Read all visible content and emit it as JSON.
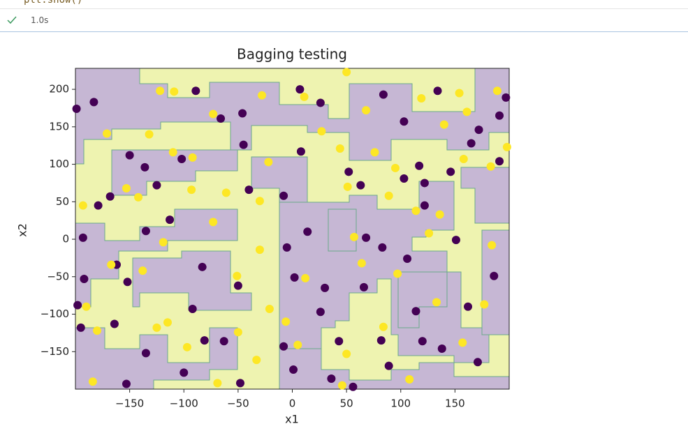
{
  "cell": {
    "code": "plt.show()",
    "status_time": "1.0s"
  },
  "chart_data": {
    "type": "scatter",
    "title": "Bagging testing",
    "x_label": "x1",
    "y_label": "x2",
    "xlim": [
      -200,
      200
    ],
    "ylim": [
      -200,
      228
    ],
    "xticks": [
      {
        "value": -150,
        "label": "−150"
      },
      {
        "value": -100,
        "label": "−100"
      },
      {
        "value": -50,
        "label": "−50"
      },
      0,
      50,
      100,
      150
    ],
    "yticks": [
      {
        "value": -150,
        "label": "−150"
      },
      {
        "value": -100,
        "label": "−100"
      },
      {
        "value": -50,
        "label": "−50"
      },
      0,
      50,
      100,
      150,
      200
    ],
    "series": [
      {
        "color": "#440154",
        "x": [
          -89,
          -183,
          -199,
          -66,
          -46,
          26,
          7,
          84,
          103,
          134,
          172,
          191,
          197,
          -45,
          -150,
          -102,
          8,
          52,
          117,
          146,
          191,
          165,
          -136,
          -125,
          -40,
          -8,
          63,
          103,
          122,
          122,
          -168,
          -179,
          -113,
          -135,
          -193,
          14,
          68,
          83,
          151,
          -5,
          -162,
          -152,
          -192,
          -83,
          -50,
          2,
          30,
          66,
          106,
          186,
          -198,
          -92,
          26,
          114,
          162,
          -195,
          -164,
          -8,
          43,
          82,
          120,
          138,
          -81,
          -63,
          -135,
          -100,
          1,
          36,
          89,
          171,
          -48,
          -153,
          56
        ],
        "values": [
          198,
          183,
          174,
          161,
          168,
          182,
          200,
          193,
          157,
          198,
          146,
          165,
          189,
          126,
          112,
          107,
          117,
          90,
          98,
          90,
          104,
          128,
          96,
          72,
          66,
          58,
          72,
          81,
          75,
          45,
          57,
          45,
          26,
          11,
          2,
          10,
          2,
          -11,
          -1,
          -11,
          -34,
          -57,
          -53,
          -37,
          -62,
          -51,
          -65,
          -64,
          -26,
          -49,
          -88,
          -93,
          -97,
          -96,
          -90,
          -118,
          -113,
          -143,
          -136,
          -135,
          -136,
          -146,
          -135,
          -136,
          -152,
          -178,
          -174,
          -186,
          -169,
          -164,
          -192,
          -193,
          -197
        ]
      },
      {
        "color": "#fde725",
        "x": [
          -109,
          -122,
          -28,
          11,
          68,
          119,
          154,
          189,
          -171,
          -132,
          -73,
          27,
          140,
          161,
          198,
          -110,
          -92,
          -22,
          44,
          76,
          95,
          158,
          183,
          -153,
          -142,
          -93,
          -61,
          -30,
          51,
          89,
          114,
          136,
          -193,
          -73,
          -119,
          -30,
          57,
          126,
          184,
          -167,
          -138,
          -51,
          12,
          64,
          97,
          133,
          -190,
          -115,
          -21,
          -6,
          84,
          177,
          -180,
          -125,
          -97,
          -50,
          5,
          50,
          157,
          -184,
          -69,
          -33,
          46,
          108,
          50
        ],
        "values": [
          197,
          198,
          192,
          190,
          172,
          188,
          195,
          198,
          141,
          140,
          167,
          144,
          153,
          170,
          123,
          116,
          109,
          103,
          121,
          116,
          95,
          107,
          97,
          68,
          56,
          66,
          62,
          51,
          70,
          58,
          38,
          33,
          45,
          23,
          -4,
          -14,
          3,
          8,
          -8,
          -34,
          -42,
          -49,
          -52,
          -32,
          -46,
          -84,
          -90,
          -111,
          -93,
          -110,
          -117,
          -87,
          -122,
          -118,
          -144,
          -124,
          -141,
          -153,
          -138,
          -190,
          -192,
          -161,
          -195,
          -187,
          223
        ]
      }
    ]
  }
}
